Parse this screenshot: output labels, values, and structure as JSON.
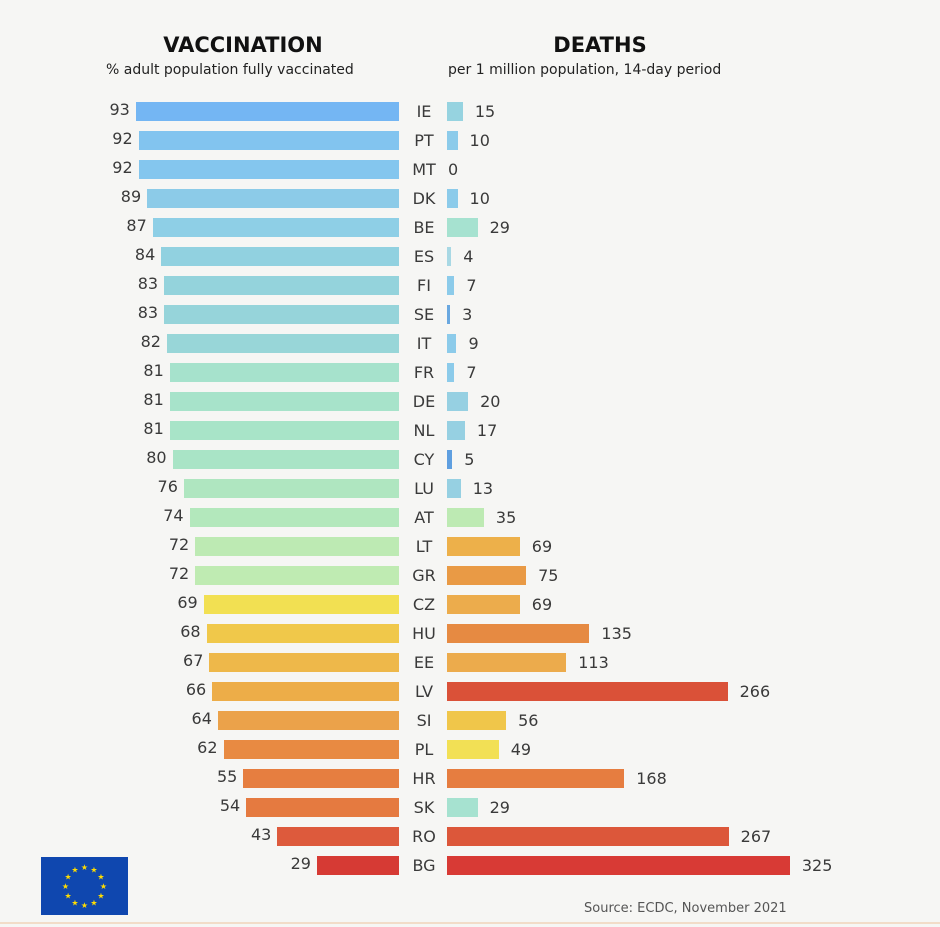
{
  "chart_data": [
    {
      "type": "bar",
      "orientation": "horizontal",
      "title": "VACCINATION",
      "subtitle": "% adult population fully vaccinated",
      "categories": [
        "IE",
        "PT",
        "MT",
        "DK",
        "BE",
        "ES",
        "FI",
        "SE",
        "IT",
        "FR",
        "DE",
        "NL",
        "CY",
        "LU",
        "AT",
        "LT",
        "GR",
        "CZ",
        "HU",
        "EE",
        "LV",
        "SI",
        "PL",
        "HR",
        "SK",
        "RO",
        "BG"
      ],
      "values": [
        93,
        92,
        92,
        89,
        87,
        84,
        83,
        83,
        82,
        81,
        81,
        81,
        80,
        76,
        74,
        72,
        72,
        69,
        68,
        67,
        66,
        64,
        62,
        55,
        54,
        43,
        29
      ],
      "colors": [
        "#74b6f3",
        "#82c4ef",
        "#84c6ee",
        "#8ccbe8",
        "#8ecfe6",
        "#91d1e0",
        "#94d3dc",
        "#96d4da",
        "#98d6d8",
        "#a6e2cc",
        "#a7e3ca",
        "#a8e4c8",
        "#a9e4c6",
        "#afe6c0",
        "#b3e8bc",
        "#bdeab3",
        "#bfebb2",
        "#f2e052",
        "#f0c84a",
        "#eeb84a",
        "#edad48",
        "#eba24a",
        "#e88a42",
        "#e67e40",
        "#e57a40",
        "#dd5a3c",
        "#d63a34"
      ]
    },
    {
      "type": "bar",
      "orientation": "horizontal",
      "title": "DEATHS",
      "subtitle": "per 1 million population, 14-day period",
      "categories": [
        "IE",
        "PT",
        "MT",
        "DK",
        "BE",
        "ES",
        "FI",
        "SE",
        "IT",
        "FR",
        "DE",
        "NL",
        "CY",
        "LU",
        "AT",
        "LT",
        "GR",
        "CZ",
        "HU",
        "EE",
        "LV",
        "SI",
        "PL",
        "HR",
        "SK",
        "RO",
        "BG"
      ],
      "values": [
        15,
        10,
        0,
        10,
        29,
        4,
        7,
        3,
        9,
        7,
        20,
        17,
        5,
        13,
        35,
        69,
        75,
        69,
        135,
        113,
        266,
        56,
        49,
        168,
        29,
        267,
        325
      ],
      "colors": [
        "#96d3e0",
        "#8ccbea",
        "#8ccbea",
        "#8ccbea",
        "#a6e2d0",
        "#a8d8e4",
        "#8ccbea",
        "#6aa8e0",
        "#8ccbea",
        "#8ccbea",
        "#96d0e2",
        "#96d0e2",
        "#5f9fe0",
        "#96d0e2",
        "#bdeab3",
        "#edb04a",
        "#e99a45",
        "#ecac4c",
        "#e68a42",
        "#ecab4c",
        "#da5138",
        "#f0c64a",
        "#f2e055",
        "#e67d40",
        "#a6e2d0",
        "#dc573a",
        "#d83a35"
      ]
    }
  ],
  "source": "Source: ECDC, November 2021",
  "logo": "EU flag"
}
